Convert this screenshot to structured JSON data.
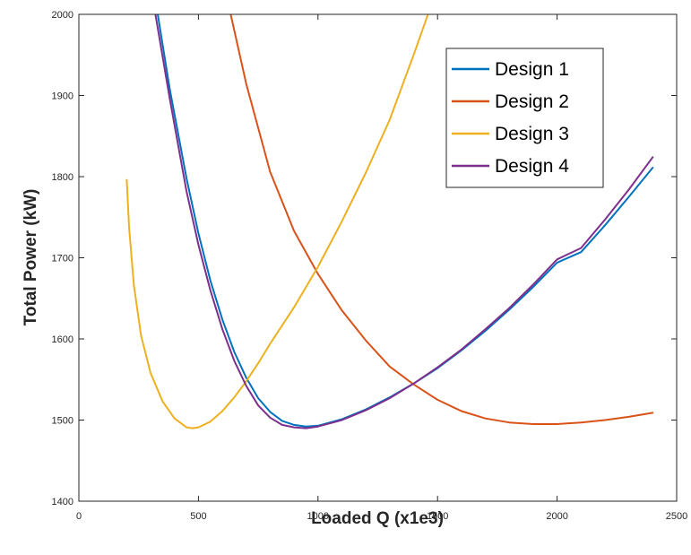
{
  "chart_data": {
    "type": "line",
    "title": "",
    "xlabel": "Loaded Q (x1e3)",
    "ylabel": "Total Power (kW)",
    "xlim": [
      0,
      2500
    ],
    "ylim": [
      1400,
      2000
    ],
    "xticks": [
      0,
      500,
      1000,
      1500,
      2000,
      2500
    ],
    "yticks": [
      1400,
      1500,
      1600,
      1700,
      1800,
      1900,
      2000
    ],
    "xtick_labels": [
      "0",
      "500",
      "1000",
      "1500",
      "2000",
      "2500"
    ],
    "ytick_labels": [
      "1400",
      "1500",
      "1600",
      "1700",
      "1800",
      "1900",
      "2000"
    ],
    "grid": false,
    "legend_position": "top-right",
    "series": [
      {
        "name": "Design 1",
        "color": "#0072BD",
        "x": [
          330,
          380,
          450,
          500,
          550,
          600,
          650,
          700,
          750,
          800,
          850,
          900,
          950,
          1000,
          1100,
          1200,
          1300,
          1400,
          1500,
          1600,
          1700,
          1800,
          1900,
          2000,
          2100,
          2200,
          2300,
          2400
        ],
        "y": [
          2000,
          1908,
          1798,
          1730,
          1672,
          1624,
          1584,
          1552,
          1527,
          1510,
          1499,
          1494,
          1492,
          1493,
          1501,
          1513,
          1528,
          1545,
          1564,
          1586,
          1610,
          1636,
          1664,
          1694,
          1707,
          1740,
          1775,
          1811
        ]
      },
      {
        "name": "Design 2",
        "color": "#D95319",
        "x": [
          635,
          700,
          800,
          900,
          1000,
          1100,
          1200,
          1300,
          1400,
          1500,
          1600,
          1700,
          1800,
          1900,
          2000,
          2100,
          2200,
          2300,
          2400
        ],
        "y": [
          2000,
          1914,
          1806,
          1733,
          1680,
          1635,
          1598,
          1566,
          1544,
          1525,
          1511,
          1502,
          1497,
          1495,
          1495,
          1497,
          1500,
          1504,
          1509
        ]
      },
      {
        "name": "Design 3",
        "color": "#EDB120",
        "x": [
          200,
          210,
          230,
          260,
          300,
          350,
          400,
          450,
          475,
          500,
          550,
          600,
          650,
          700,
          750,
          800,
          900,
          1000,
          1100,
          1200,
          1300,
          1400,
          1460
        ],
        "y": [
          1796,
          1738,
          1666,
          1604,
          1558,
          1523,
          1502,
          1491,
          1490,
          1491,
          1498,
          1511,
          1528,
          1548,
          1570,
          1594,
          1639,
          1689,
          1745,
          1805,
          1870,
          1950,
          2000
        ]
      },
      {
        "name": "Design 4",
        "color": "#7E2F8E",
        "x": [
          320,
          380,
          450,
          500,
          550,
          600,
          650,
          700,
          750,
          800,
          850,
          900,
          950,
          1000,
          1100,
          1200,
          1300,
          1400,
          1500,
          1600,
          1700,
          1800,
          1900,
          2000,
          2100,
          2200,
          2300,
          2400
        ],
        "y": [
          2000,
          1896,
          1782,
          1716,
          1660,
          1612,
          1573,
          1542,
          1518,
          1503,
          1494,
          1491,
          1490,
          1492,
          1500,
          1512,
          1527,
          1545,
          1565,
          1587,
          1612,
          1638,
          1667,
          1698,
          1712,
          1747,
          1784,
          1824
        ]
      }
    ]
  }
}
